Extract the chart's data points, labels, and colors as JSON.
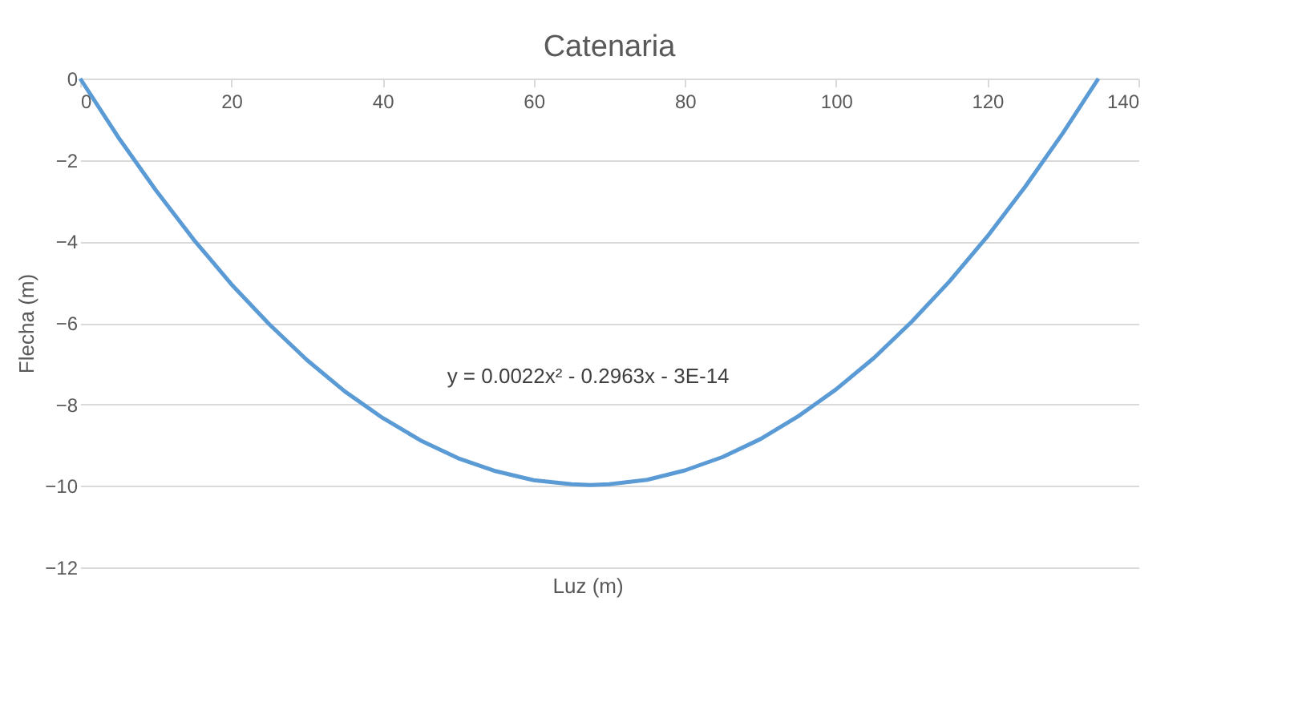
{
  "chart_data": {
    "type": "line",
    "title": "Catenaria",
    "xlabel": "Luz (m)",
    "ylabel": "Flecha (m)",
    "x": [
      0,
      5,
      10,
      15,
      20,
      25,
      30,
      35,
      40,
      45,
      50,
      55,
      60,
      65,
      67.5,
      70,
      75,
      80,
      85,
      90,
      95,
      100,
      105,
      110,
      115,
      120,
      125,
      130,
      134.7
    ],
    "series": [
      {
        "color": "#5b9bd5",
        "values": [
          0,
          -1.43,
          -2.74,
          -3.95,
          -5.05,
          -6.03,
          -6.91,
          -7.68,
          -8.33,
          -8.88,
          -9.32,
          -9.64,
          -9.86,
          -9.96,
          -9.98,
          -9.96,
          -9.85,
          -9.62,
          -9.29,
          -8.85,
          -8.29,
          -7.63,
          -6.86,
          -5.97,
          -4.98,
          -3.88,
          -2.66,
          -1.34,
          0
        ]
      }
    ],
    "xlim": [
      0,
      140
    ],
    "xticks": [
      0,
      20,
      40,
      60,
      80,
      100,
      120,
      140
    ],
    "ylim": [
      -12,
      0
    ],
    "yticks": [
      0,
      -2,
      -4,
      -6,
      -8,
      -10,
      -12
    ],
    "grid": "y",
    "marker": "none",
    "line_style": "solid",
    "annotations": [
      "y = 0.0022x² - 0.2963x - 3E-14"
    ]
  }
}
